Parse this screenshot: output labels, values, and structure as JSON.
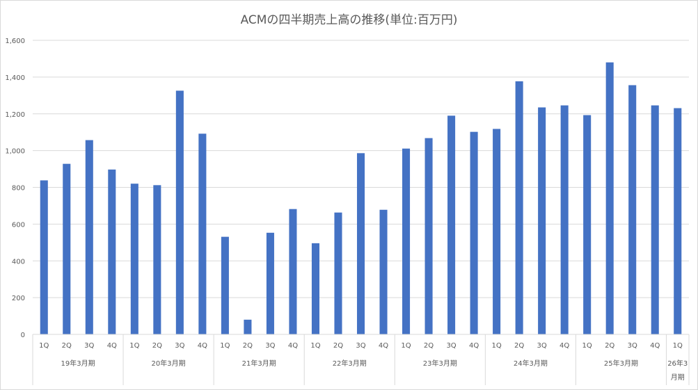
{
  "chart_data": {
    "type": "bar",
    "title": "ACMの四半期売上高の推移(単位:百万円)",
    "xlabel": "",
    "ylabel": "",
    "ylim": [
      0,
      1600
    ],
    "yticks": [
      0,
      200,
      400,
      600,
      800,
      1000,
      1200,
      1400,
      1600
    ],
    "ytick_labels": [
      "0",
      "200",
      "400",
      "600",
      "800",
      "1,000",
      "1,200",
      "1,400",
      "1,600"
    ],
    "grid": true,
    "legend": "none",
    "bar_color": "#4472C4",
    "groups": [
      {
        "label": "19年3月期",
        "categories": [
          "1Q",
          "2Q",
          "3Q",
          "4Q"
        ],
        "values": [
          838,
          928,
          1057,
          897
        ]
      },
      {
        "label": "20年3月期",
        "categories": [
          "1Q",
          "2Q",
          "3Q",
          "4Q"
        ],
        "values": [
          820,
          812,
          1326,
          1092
        ]
      },
      {
        "label": "21年3月期",
        "categories": [
          "1Q",
          "2Q",
          "3Q",
          "4Q"
        ],
        "values": [
          531,
          80,
          553,
          682
        ]
      },
      {
        "label": "22年3月期",
        "categories": [
          "1Q",
          "2Q",
          "3Q",
          "4Q"
        ],
        "values": [
          496,
          663,
          986,
          678
        ]
      },
      {
        "label": "23年3月期",
        "categories": [
          "1Q",
          "2Q",
          "3Q",
          "4Q"
        ],
        "values": [
          1011,
          1068,
          1190,
          1102
        ]
      },
      {
        "label": "24年3月期",
        "categories": [
          "1Q",
          "2Q",
          "3Q",
          "4Q"
        ],
        "values": [
          1118,
          1377,
          1235,
          1246
        ]
      },
      {
        "label": "25年3月期",
        "categories": [
          "1Q",
          "2Q",
          "3Q",
          "4Q"
        ],
        "values": [
          1193,
          1480,
          1356,
          1246
        ]
      },
      {
        "label": "26年3月期",
        "label_lines": [
          "26年3",
          "月期"
        ],
        "categories": [
          "1Q"
        ],
        "values": [
          1231
        ]
      }
    ]
  }
}
